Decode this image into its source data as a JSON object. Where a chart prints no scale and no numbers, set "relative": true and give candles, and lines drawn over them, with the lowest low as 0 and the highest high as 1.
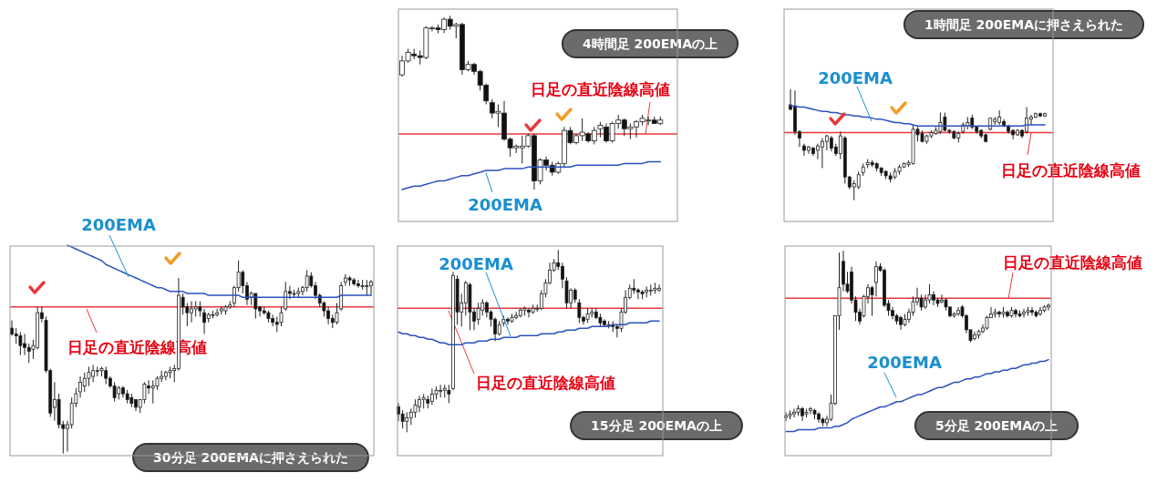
{
  "chart_data": [
    {
      "type": "candlestick",
      "title": "4時間足 200EMAの上",
      "relative": true,
      "categories": [
        null,
        null,
        null,
        null,
        null,
        null,
        null,
        null,
        null,
        null,
        null,
        null,
        null,
        null,
        null,
        null,
        null,
        null,
        null,
        null,
        null,
        null,
        null,
        null,
        null,
        null,
        null,
        null,
        null,
        null,
        null,
        null,
        null,
        null,
        null,
        null,
        null,
        null,
        null,
        null,
        null,
        null,
        null,
        null
      ],
      "ohlc": [
        [
          0.66,
          0.77,
          0.65,
          0.74
        ],
        [
          0.74,
          0.81,
          0.73,
          0.79
        ],
        [
          0.78,
          0.81,
          0.75,
          0.77
        ],
        [
          0.77,
          0.8,
          0.72,
          0.76
        ],
        [
          0.76,
          0.94,
          0.75,
          0.93
        ],
        [
          0.93,
          0.94,
          0.91,
          0.93
        ],
        [
          0.93,
          0.95,
          0.9,
          0.92
        ],
        [
          0.92,
          0.99,
          0.9,
          0.98
        ],
        [
          0.98,
          1.0,
          0.92,
          0.94
        ],
        [
          0.94,
          0.96,
          0.87,
          0.95
        ],
        [
          0.95,
          0.96,
          0.66,
          0.69
        ],
        [
          0.69,
          0.74,
          0.68,
          0.72
        ],
        [
          0.72,
          0.73,
          0.66,
          0.68
        ],
        [
          0.68,
          0.69,
          0.57,
          0.6
        ],
        [
          0.6,
          0.61,
          0.49,
          0.51
        ],
        [
          0.5,
          0.52,
          0.41,
          0.44
        ],
        [
          0.44,
          0.49,
          0.36,
          0.45
        ],
        [
          0.44,
          0.51,
          0.28,
          0.29
        ],
        [
          0.29,
          0.3,
          0.19,
          0.24
        ],
        [
          0.24,
          0.26,
          0.21,
          0.25
        ],
        [
          0.24,
          0.31,
          0.15,
          0.25
        ],
        [
          0.25,
          0.32,
          0.24,
          0.31
        ],
        [
          0.31,
          0.32,
          0.0,
          0.05
        ],
        [
          0.05,
          0.18,
          0.03,
          0.17
        ],
        [
          0.17,
          0.19,
          0.11,
          0.14
        ],
        [
          0.14,
          0.16,
          0.08,
          0.1
        ],
        [
          0.1,
          0.16,
          0.09,
          0.15
        ],
        [
          0.15,
          0.36,
          0.13,
          0.34
        ],
        [
          0.34,
          0.36,
          0.26,
          0.27
        ],
        [
          0.27,
          0.32,
          0.26,
          0.31
        ],
        [
          0.31,
          0.41,
          0.28,
          0.33
        ],
        [
          0.32,
          0.33,
          0.27,
          0.28
        ],
        [
          0.28,
          0.36,
          0.26,
          0.34
        ],
        [
          0.35,
          0.39,
          0.3,
          0.37
        ],
        [
          0.36,
          0.38,
          0.27,
          0.28
        ],
        [
          0.28,
          0.39,
          0.27,
          0.38
        ],
        [
          0.38,
          0.43,
          0.35,
          0.4
        ],
        [
          0.4,
          0.41,
          0.31,
          0.35
        ],
        [
          0.35,
          0.38,
          0.29,
          0.36
        ],
        [
          0.36,
          0.4,
          0.3,
          0.39
        ],
        [
          0.39,
          0.43,
          0.37,
          0.41
        ],
        [
          0.4,
          0.42,
          0.37,
          0.4
        ],
        [
          0.4,
          0.42,
          0.38,
          0.38
        ],
        [
          0.38,
          0.42,
          0.37,
          0.4
        ]
      ],
      "series": [
        {
          "name": "200EMA",
          "type": "line",
          "color": "#2a52be",
          "values": [
            0.0,
            0.01,
            0.02,
            0.02,
            0.03,
            0.04,
            0.05,
            0.05,
            0.06,
            0.07,
            0.08,
            0.08,
            0.09,
            0.1,
            0.11,
            0.11,
            0.11,
            0.12,
            0.12,
            0.12,
            0.12,
            0.13,
            0.13,
            0.13,
            0.13,
            0.13,
            0.13,
            0.13,
            0.13,
            0.14,
            0.14,
            0.14,
            0.14,
            0.14,
            0.14,
            0.14,
            0.14,
            0.15,
            0.15,
            0.15,
            0.15,
            0.16,
            0.16,
            0.16
          ]
        }
      ],
      "ref_lines": [
        {
          "axis": "y",
          "value": 0.32,
          "label": "日足の直近陰線高値",
          "color": "#e8383d"
        }
      ]
    },
    {
      "type": "candlestick",
      "title": "1時間足 200EMAに押さえられた",
      "relative": true,
      "categories": [
        null,
        null,
        null,
        null,
        null,
        null,
        null,
        null,
        null,
        null,
        null,
        null,
        null,
        null,
        null,
        null,
        null,
        null,
        null,
        null,
        null,
        null,
        null,
        null,
        null,
        null,
        null,
        null,
        null,
        null,
        null,
        null,
        null,
        null,
        null,
        null,
        null,
        null,
        null,
        null,
        null,
        null,
        null,
        null,
        null,
        null,
        null,
        null,
        null,
        null,
        null,
        null,
        null,
        null,
        null,
        null,
        null
      ],
      "ohlc": [
        [
          0.86,
          1.0,
          0.81,
          0.82
        ],
        [
          0.84,
          0.99,
          0.59,
          0.62
        ],
        [
          0.62,
          0.63,
          0.48,
          0.56
        ],
        [
          0.49,
          0.51,
          0.4,
          0.45
        ],
        [
          0.45,
          0.49,
          0.42,
          0.48
        ],
        [
          0.47,
          0.48,
          0.4,
          0.42
        ],
        [
          0.45,
          0.51,
          0.37,
          0.49
        ],
        [
          0.48,
          0.56,
          0.29,
          0.53
        ],
        [
          0.53,
          0.59,
          0.45,
          0.58
        ],
        [
          0.56,
          0.58,
          0.44,
          0.47
        ],
        [
          0.48,
          0.51,
          0.4,
          0.42
        ],
        [
          0.42,
          0.62,
          0.37,
          0.58
        ],
        [
          0.56,
          0.58,
          0.15,
          0.21
        ],
        [
          0.21,
          0.22,
          0.1,
          0.12
        ],
        [
          0.12,
          0.18,
          0.0,
          0.15
        ],
        [
          0.12,
          0.26,
          0.1,
          0.23
        ],
        [
          0.25,
          0.33,
          0.22,
          0.3
        ],
        [
          0.32,
          0.37,
          0.29,
          0.34
        ],
        [
          0.34,
          0.36,
          0.3,
          0.32
        ],
        [
          0.33,
          0.34,
          0.26,
          0.29
        ],
        [
          0.29,
          0.3,
          0.22,
          0.25
        ],
        [
          0.26,
          0.27,
          0.19,
          0.22
        ],
        [
          0.22,
          0.25,
          0.16,
          0.19
        ],
        [
          0.21,
          0.29,
          0.19,
          0.26
        ],
        [
          0.26,
          0.32,
          0.23,
          0.3
        ],
        [
          0.3,
          0.34,
          0.29,
          0.33
        ],
        [
          0.32,
          0.36,
          0.3,
          0.34
        ],
        [
          0.33,
          0.68,
          0.32,
          0.64
        ],
        [
          0.64,
          0.66,
          0.53,
          0.59
        ],
        [
          0.6,
          0.63,
          0.52,
          0.53
        ],
        [
          0.53,
          0.59,
          0.51,
          0.58
        ],
        [
          0.58,
          0.63,
          0.56,
          0.61
        ],
        [
          0.6,
          0.66,
          0.59,
          0.63
        ],
        [
          0.62,
          0.79,
          0.6,
          0.7
        ],
        [
          0.75,
          0.79,
          0.62,
          0.63
        ],
        [
          0.63,
          0.64,
          0.6,
          0.62
        ],
        [
          0.62,
          0.63,
          0.55,
          0.56
        ],
        [
          0.56,
          0.62,
          0.52,
          0.6
        ],
        [
          0.62,
          0.7,
          0.6,
          0.68
        ],
        [
          0.67,
          0.75,
          0.64,
          0.7
        ],
        [
          0.74,
          0.77,
          0.64,
          0.66
        ],
        [
          0.66,
          0.67,
          0.6,
          0.62
        ],
        [
          0.63,
          0.64,
          0.56,
          0.58
        ],
        [
          0.59,
          0.6,
          0.52,
          0.53
        ],
        [
          0.64,
          0.74,
          0.63,
          0.74
        ],
        [
          0.71,
          0.75,
          0.68,
          0.73
        ],
        [
          0.7,
          0.81,
          0.68,
          0.75
        ],
        [
          0.71,
          0.73,
          0.66,
          0.67
        ],
        [
          0.67,
          0.68,
          0.6,
          0.62
        ],
        [
          0.63,
          0.64,
          0.55,
          0.59
        ],
        [
          0.59,
          0.64,
          0.58,
          0.63
        ],
        [
          0.63,
          0.64,
          0.56,
          0.58
        ],
        [
          0.62,
          0.84,
          0.6,
          0.74
        ],
        [
          0.73,
          0.77,
          0.68,
          0.75
        ],
        [
          0.75,
          0.79,
          0.74,
          0.78
        ],
        [
          0.78,
          0.79,
          0.75,
          0.76
        ],
        [
          0.76,
          0.79,
          0.75,
          0.78
        ]
      ],
      "series": [
        {
          "name": "200EMA",
          "type": "line",
          "color": "#2a52be",
          "values": [
            0.85,
            0.85,
            0.84,
            0.84,
            0.83,
            0.82,
            0.81,
            0.8,
            0.8,
            0.79,
            0.79,
            0.78,
            0.77,
            0.77,
            0.76,
            0.76,
            0.75,
            0.75,
            0.74,
            0.73,
            0.73,
            0.72,
            0.71,
            0.7,
            0.7,
            0.69,
            0.69,
            0.68,
            0.67,
            0.67,
            0.67,
            0.67,
            0.67,
            0.67,
            0.67,
            0.67,
            0.67,
            0.67,
            0.67,
            0.67,
            0.67,
            0.67,
            0.67,
            0.67,
            0.67,
            0.67,
            0.67,
            0.67,
            0.67,
            0.67,
            0.67,
            0.67,
            0.68,
            0.68,
            0.68,
            0.68,
            0.68
          ]
        }
      ],
      "ref_lines": [
        {
          "axis": "y",
          "value": 0.61,
          "label": "日足の直近陰線高値",
          "color": "#e8383d"
        }
      ]
    },
    {
      "type": "candlestick",
      "title": "30分足 200EMAに押さえられた",
      "relative": true,
      "categories": [
        null,
        null,
        null,
        null,
        null,
        null,
        null,
        null,
        null,
        null,
        null,
        null,
        null,
        null,
        null,
        null,
        null,
        null,
        null,
        null,
        null,
        null,
        null,
        null,
        null,
        null,
        null,
        null,
        null,
        null,
        null,
        null,
        null,
        null,
        null,
        null,
        null,
        null,
        null,
        null,
        null,
        null,
        null,
        null,
        null,
        null,
        null,
        null,
        null,
        null,
        null,
        null,
        null,
        null,
        null,
        null,
        null,
        null,
        null,
        null,
        null,
        null,
        null,
        null,
        null,
        null,
        null,
        null,
        null,
        null,
        null,
        null,
        null,
        null,
        null,
        null,
        null,
        null,
        null,
        null,
        null,
        null,
        null,
        null,
        null
      ],
      "ohlc": [
        [
          0.65,
          0.69,
          0.61,
          0.62
        ],
        [
          0.62,
          0.65,
          0.57,
          0.61
        ],
        [
          0.61,
          0.63,
          0.51,
          0.56
        ],
        [
          0.57,
          0.62,
          0.51,
          0.55
        ],
        [
          0.55,
          0.57,
          0.47,
          0.53
        ],
        [
          0.54,
          0.59,
          0.49,
          0.56
        ],
        [
          0.55,
          0.76,
          0.54,
          0.73
        ],
        [
          0.73,
          0.76,
          0.68,
          0.7
        ],
        [
          0.69,
          0.71,
          0.42,
          0.43
        ],
        [
          0.43,
          0.44,
          0.19,
          0.21
        ],
        [
          0.24,
          0.37,
          0.17,
          0.28
        ],
        [
          0.28,
          0.31,
          0.13,
          0.15
        ],
        [
          0.15,
          0.17,
          0.0,
          0.13
        ],
        [
          0.13,
          0.17,
          0.01,
          0.15
        ],
        [
          0.15,
          0.29,
          0.13,
          0.26
        ],
        [
          0.26,
          0.34,
          0.24,
          0.31
        ],
        [
          0.32,
          0.4,
          0.29,
          0.37
        ],
        [
          0.35,
          0.42,
          0.32,
          0.39
        ],
        [
          0.39,
          0.45,
          0.35,
          0.42
        ],
        [
          0.4,
          0.46,
          0.37,
          0.43
        ],
        [
          0.43,
          0.45,
          0.4,
          0.43
        ],
        [
          0.43,
          0.45,
          0.4,
          0.44
        ],
        [
          0.43,
          0.45,
          0.36,
          0.39
        ],
        [
          0.39,
          0.4,
          0.34,
          0.35
        ],
        [
          0.35,
          0.37,
          0.27,
          0.29
        ],
        [
          0.31,
          0.35,
          0.28,
          0.34
        ],
        [
          0.34,
          0.35,
          0.29,
          0.31
        ],
        [
          0.31,
          0.33,
          0.26,
          0.28
        ],
        [
          0.29,
          0.31,
          0.24,
          0.26
        ],
        [
          0.28,
          0.28,
          0.22,
          0.24
        ],
        [
          0.24,
          0.28,
          0.21,
          0.28
        ],
        [
          0.28,
          0.37,
          0.26,
          0.36
        ],
        [
          0.35,
          0.38,
          0.31,
          0.34
        ],
        [
          0.34,
          0.38,
          0.26,
          0.35
        ],
        [
          0.35,
          0.4,
          0.33,
          0.39
        ],
        [
          0.39,
          0.43,
          0.37,
          0.4
        ],
        [
          0.4,
          0.43,
          0.38,
          0.42
        ],
        [
          0.42,
          0.45,
          0.39,
          0.43
        ],
        [
          0.43,
          0.46,
          0.37,
          0.44
        ],
        [
          0.44,
          0.91,
          0.43,
          0.82
        ],
        [
          0.81,
          0.83,
          0.72,
          0.76
        ],
        [
          0.76,
          0.78,
          0.66,
          0.73
        ],
        [
          0.73,
          0.79,
          0.68,
          0.75
        ],
        [
          0.75,
          0.79,
          0.71,
          0.76
        ],
        [
          0.76,
          0.79,
          0.71,
          0.74
        ],
        [
          0.73,
          0.75,
          0.62,
          0.68
        ],
        [
          0.7,
          0.73,
          0.68,
          0.72
        ],
        [
          0.72,
          0.74,
          0.7,
          0.72
        ],
        [
          0.72,
          0.75,
          0.71,
          0.73
        ],
        [
          0.74,
          0.76,
          0.72,
          0.75
        ],
        [
          0.74,
          0.77,
          0.72,
          0.76
        ],
        [
          0.76,
          0.79,
          0.75,
          0.77
        ],
        [
          0.78,
          0.87,
          0.76,
          0.86
        ],
        [
          0.86,
          1.0,
          0.84,
          0.94
        ],
        [
          0.94,
          0.95,
          0.83,
          0.87
        ],
        [
          0.87,
          0.89,
          0.77,
          0.8
        ],
        [
          0.81,
          0.84,
          0.77,
          0.83
        ],
        [
          0.83,
          0.83,
          0.7,
          0.75
        ],
        [
          0.76,
          0.76,
          0.71,
          0.74
        ],
        [
          0.74,
          0.76,
          0.72,
          0.73
        ],
        [
          0.73,
          0.74,
          0.68,
          0.7
        ],
        [
          0.7,
          0.72,
          0.66,
          0.68
        ],
        [
          0.68,
          0.71,
          0.63,
          0.67
        ],
        [
          0.68,
          0.76,
          0.66,
          0.73
        ],
        [
          0.75,
          0.89,
          0.74,
          0.84
        ],
        [
          0.84,
          0.87,
          0.8,
          0.83
        ],
        [
          0.83,
          0.85,
          0.81,
          0.83
        ],
        [
          0.83,
          0.86,
          0.81,
          0.84
        ],
        [
          0.84,
          0.87,
          0.82,
          0.86
        ],
        [
          0.86,
          0.95,
          0.84,
          0.92
        ],
        [
          0.92,
          0.94,
          0.86,
          0.87
        ],
        [
          0.87,
          0.89,
          0.8,
          0.82
        ],
        [
          0.82,
          0.83,
          0.76,
          0.78
        ],
        [
          0.78,
          0.79,
          0.71,
          0.74
        ],
        [
          0.74,
          0.76,
          0.67,
          0.7
        ],
        [
          0.7,
          0.72,
          0.65,
          0.68
        ],
        [
          0.68,
          0.78,
          0.67,
          0.73
        ],
        [
          0.75,
          0.89,
          0.74,
          0.87
        ],
        [
          0.89,
          0.93,
          0.87,
          0.91
        ],
        [
          0.91,
          0.92,
          0.87,
          0.9
        ],
        [
          0.9,
          0.91,
          0.87,
          0.88
        ],
        [
          0.88,
          0.9,
          0.86,
          0.87
        ],
        [
          0.87,
          0.9,
          0.85,
          0.87
        ],
        [
          0.87,
          0.9,
          0.82,
          0.87
        ],
        [
          0.87,
          0.9,
          0.82,
          0.89
        ]
      ],
      "series": [
        {
          "name": "200EMA",
          "type": "line",
          "color": "#2a52be",
          "values": [
            null,
            null,
            null,
            null,
            null,
            null,
            null,
            null,
            null,
            null,
            null,
            null,
            null,
            1.08,
            1.07,
            1.06,
            1.05,
            1.04,
            1.03,
            1.02,
            1.01,
            1.0,
            0.98,
            0.97,
            0.96,
            0.95,
            0.94,
            0.93,
            0.92,
            0.91,
            0.9,
            0.89,
            0.88,
            0.87,
            0.86,
            0.86,
            0.85,
            0.84,
            0.84,
            0.84,
            0.84,
            0.83,
            0.83,
            0.83,
            0.83,
            0.83,
            0.82,
            0.82,
            0.82,
            0.82,
            0.82,
            0.82,
            0.82,
            0.82,
            0.81,
            0.81,
            0.81,
            0.81,
            0.81,
            0.81,
            0.81,
            0.81,
            0.81,
            0.81,
            0.81,
            0.81,
            0.81,
            0.81,
            0.81,
            0.81,
            0.81,
            0.81,
            0.81,
            0.81,
            0.81,
            0.81,
            0.81,
            0.82,
            0.82,
            0.82,
            0.82,
            0.82,
            0.82,
            0.82,
            0.82
          ]
        }
      ],
      "ref_lines": [
        {
          "axis": "y",
          "value": 0.76,
          "label": "日足の直近陰線高値",
          "color": "#e8383d"
        }
      ]
    },
    {
      "type": "candlestick",
      "title": "15分足 200EMAの上",
      "relative": true,
      "categories": [
        null,
        null,
        null,
        null,
        null,
        null,
        null,
        null,
        null,
        null,
        null,
        null,
        null,
        null,
        null,
        null,
        null,
        null,
        null,
        null,
        null,
        null,
        null,
        null,
        null,
        null,
        null,
        null,
        null,
        null,
        null,
        null,
        null,
        null,
        null,
        null,
        null,
        null,
        null,
        null,
        null,
        null,
        null,
        null,
        null,
        null,
        null,
        null,
        null,
        null,
        null,
        null,
        null,
        null,
        null,
        null,
        null,
        null,
        null,
        null,
        null,
        null,
        null
      ],
      "ohlc": [
        [
          0.14,
          0.16,
          0.06,
          0.1
        ],
        [
          0.1,
          0.12,
          0.02,
          0.06
        ],
        [
          0.06,
          0.11,
          0.0,
          0.08
        ],
        [
          0.08,
          0.13,
          0.04,
          0.11
        ],
        [
          0.11,
          0.18,
          0.08,
          0.15
        ],
        [
          0.14,
          0.2,
          0.11,
          0.18
        ],
        [
          0.18,
          0.21,
          0.13,
          0.19
        ],
        [
          0.18,
          0.2,
          0.13,
          0.16
        ],
        [
          0.17,
          0.24,
          0.15,
          0.21
        ],
        [
          0.21,
          0.25,
          0.18,
          0.23
        ],
        [
          0.23,
          0.26,
          0.19,
          0.23
        ],
        [
          0.23,
          0.26,
          0.19,
          0.24
        ],
        [
          0.23,
          0.26,
          0.16,
          0.21
        ],
        [
          0.24,
          0.88,
          0.23,
          0.86
        ],
        [
          0.84,
          0.86,
          0.59,
          0.66
        ],
        [
          0.66,
          0.76,
          0.58,
          0.71
        ],
        [
          0.71,
          0.83,
          0.64,
          0.82
        ],
        [
          0.81,
          0.82,
          0.56,
          0.66
        ],
        [
          0.66,
          0.68,
          0.56,
          0.61
        ],
        [
          0.62,
          0.71,
          0.59,
          0.68
        ],
        [
          0.67,
          0.73,
          0.64,
          0.71
        ],
        [
          0.71,
          0.72,
          0.63,
          0.66
        ],
        [
          0.66,
          0.67,
          0.58,
          0.62
        ],
        [
          0.62,
          0.63,
          0.5,
          0.54
        ],
        [
          0.54,
          0.61,
          0.53,
          0.59
        ],
        [
          0.6,
          0.64,
          0.58,
          0.62
        ],
        [
          0.62,
          0.63,
          0.59,
          0.61
        ],
        [
          0.61,
          0.65,
          0.6,
          0.63
        ],
        [
          0.63,
          0.66,
          0.62,
          0.64
        ],
        [
          0.64,
          0.68,
          0.63,
          0.67
        ],
        [
          0.67,
          0.69,
          0.64,
          0.68
        ],
        [
          0.67,
          0.68,
          0.63,
          0.66
        ],
        [
          0.66,
          0.7,
          0.65,
          0.68
        ],
        [
          0.68,
          0.7,
          0.66,
          0.68
        ],
        [
          0.68,
          0.78,
          0.67,
          0.76
        ],
        [
          0.76,
          0.84,
          0.74,
          0.82
        ],
        [
          0.82,
          0.93,
          0.81,
          0.89
        ],
        [
          0.89,
          0.95,
          0.88,
          0.93
        ],
        [
          0.93,
          1.0,
          0.89,
          0.91
        ],
        [
          0.91,
          0.93,
          0.79,
          0.84
        ],
        [
          0.83,
          0.85,
          0.68,
          0.71
        ],
        [
          0.71,
          0.79,
          0.68,
          0.78
        ],
        [
          0.78,
          0.79,
          0.71,
          0.73
        ],
        [
          0.71,
          0.73,
          0.6,
          0.63
        ],
        [
          0.63,
          0.64,
          0.59,
          0.61
        ],
        [
          0.62,
          0.68,
          0.6,
          0.65
        ],
        [
          0.65,
          0.68,
          0.63,
          0.66
        ],
        [
          0.66,
          0.68,
          0.62,
          0.63
        ],
        [
          0.63,
          0.65,
          0.58,
          0.6
        ],
        [
          0.61,
          0.62,
          0.58,
          0.59
        ],
        [
          0.59,
          0.61,
          0.57,
          0.59
        ],
        [
          0.59,
          0.61,
          0.55,
          0.58
        ],
        [
          0.58,
          0.59,
          0.52,
          0.57
        ],
        [
          0.57,
          0.68,
          0.55,
          0.66
        ],
        [
          0.66,
          0.78,
          0.65,
          0.74
        ],
        [
          0.74,
          0.81,
          0.73,
          0.79
        ],
        [
          0.79,
          0.84,
          0.76,
          0.78
        ],
        [
          0.78,
          0.79,
          0.73,
          0.77
        ],
        [
          0.77,
          0.78,
          0.73,
          0.76
        ],
        [
          0.77,
          0.8,
          0.74,
          0.78
        ],
        [
          0.78,
          0.81,
          0.75,
          0.78
        ],
        [
          0.78,
          0.82,
          0.76,
          0.79
        ],
        [
          0.78,
          0.81,
          0.77,
          0.79
        ]
      ],
      "series": [
        {
          "name": "200EMA",
          "type": "line",
          "color": "#2a52be",
          "values": [
            0.55,
            0.54,
            0.54,
            0.53,
            0.53,
            0.52,
            0.52,
            0.51,
            0.51,
            0.5,
            0.49,
            0.49,
            0.48,
            0.48,
            0.48,
            0.48,
            0.49,
            0.49,
            0.49,
            0.5,
            0.5,
            0.5,
            0.51,
            0.51,
            0.51,
            0.52,
            0.52,
            0.52,
            0.52,
            0.53,
            0.53,
            0.53,
            0.53,
            0.53,
            0.54,
            0.54,
            0.54,
            0.54,
            0.55,
            0.55,
            0.56,
            0.56,
            0.56,
            0.57,
            0.57,
            0.57,
            0.58,
            0.58,
            0.58,
            0.58,
            0.58,
            0.59,
            0.59,
            0.59,
            0.59,
            0.6,
            0.6,
            0.6,
            0.6,
            0.6,
            0.61,
            0.61,
            0.61
          ]
        }
      ],
      "ref_lines": [
        {
          "axis": "y",
          "value": 0.68,
          "label": "日足の直近陰線高値",
          "color": "#e8383d"
        }
      ]
    },
    {
      "type": "candlestick",
      "title": "5分足 200EMAの上",
      "relative": true,
      "categories": [
        null,
        null,
        null,
        null,
        null,
        null,
        null,
        null,
        null,
        null,
        null,
        null,
        null,
        null,
        null,
        null,
        null,
        null,
        null,
        null,
        null,
        null,
        null,
        null,
        null,
        null,
        null,
        null,
        null,
        null,
        null,
        null,
        null,
        null,
        null,
        null,
        null,
        null,
        null,
        null,
        null,
        null,
        null,
        null,
        null,
        null,
        null,
        null,
        null,
        null,
        null,
        null,
        null,
        null,
        null,
        null,
        null,
        null,
        null,
        null,
        null,
        null,
        null,
        null,
        null
      ],
      "ohlc": [
        [
          0.05,
          0.08,
          0.03,
          0.06
        ],
        [
          0.06,
          0.09,
          0.04,
          0.07
        ],
        [
          0.07,
          0.1,
          0.05,
          0.08
        ],
        [
          0.08,
          0.12,
          0.06,
          0.1
        ],
        [
          0.1,
          0.11,
          0.03,
          0.06
        ],
        [
          0.07,
          0.1,
          0.05,
          0.08
        ],
        [
          0.09,
          0.11,
          0.07,
          0.1
        ],
        [
          0.09,
          0.1,
          0.04,
          0.07
        ],
        [
          0.07,
          0.08,
          0.02,
          0.04
        ],
        [
          0.04,
          0.05,
          0.0,
          0.02
        ],
        [
          0.02,
          0.06,
          0.0,
          0.04
        ],
        [
          0.04,
          0.18,
          0.03,
          0.13
        ],
        [
          0.13,
          0.63,
          0.12,
          0.63
        ],
        [
          0.63,
          0.99,
          0.55,
          0.79
        ],
        [
          0.94,
          1.0,
          0.77,
          0.81
        ],
        [
          0.81,
          0.88,
          0.76,
          0.77
        ],
        [
          0.88,
          0.91,
          0.7,
          0.72
        ],
        [
          0.72,
          0.74,
          0.6,
          0.65
        ],
        [
          0.65,
          0.67,
          0.58,
          0.6
        ],
        [
          0.63,
          0.75,
          0.62,
          0.74
        ],
        [
          0.74,
          0.81,
          0.7,
          0.79
        ],
        [
          0.79,
          0.8,
          0.63,
          0.75
        ],
        [
          0.82,
          0.94,
          0.74,
          0.91
        ],
        [
          0.91,
          0.93,
          0.88,
          0.89
        ],
        [
          0.89,
          0.9,
          0.68,
          0.69
        ],
        [
          0.7,
          0.72,
          0.63,
          0.66
        ],
        [
          0.66,
          0.68,
          0.61,
          0.63
        ],
        [
          0.63,
          0.64,
          0.58,
          0.6
        ],
        [
          0.62,
          0.63,
          0.55,
          0.58
        ],
        [
          0.58,
          0.64,
          0.57,
          0.61
        ],
        [
          0.61,
          0.67,
          0.59,
          0.65
        ],
        [
          0.65,
          0.74,
          0.63,
          0.71
        ],
        [
          0.71,
          0.79,
          0.69,
          0.73
        ],
        [
          0.73,
          0.75,
          0.66,
          0.68
        ],
        [
          0.68,
          0.75,
          0.67,
          0.72
        ],
        [
          0.72,
          0.81,
          0.7,
          0.75
        ],
        [
          0.75,
          0.77,
          0.69,
          0.72
        ],
        [
          0.72,
          0.73,
          0.68,
          0.7
        ],
        [
          0.71,
          0.75,
          0.7,
          0.72
        ],
        [
          0.72,
          0.73,
          0.66,
          0.68
        ],
        [
          0.68,
          0.68,
          0.62,
          0.63
        ],
        [
          0.63,
          0.65,
          0.62,
          0.64
        ],
        [
          0.64,
          0.68,
          0.63,
          0.66
        ],
        [
          0.68,
          0.69,
          0.62,
          0.63
        ],
        [
          0.63,
          0.64,
          0.53,
          0.55
        ],
        [
          0.55,
          0.55,
          0.48,
          0.49
        ],
        [
          0.5,
          0.54,
          0.49,
          0.52
        ],
        [
          0.52,
          0.55,
          0.5,
          0.54
        ],
        [
          0.54,
          0.58,
          0.53,
          0.56
        ],
        [
          0.56,
          0.63,
          0.55,
          0.62
        ],
        [
          0.62,
          0.68,
          0.62,
          0.64
        ],
        [
          0.64,
          0.67,
          0.62,
          0.65
        ],
        [
          0.65,
          0.66,
          0.62,
          0.64
        ],
        [
          0.64,
          0.68,
          0.62,
          0.65
        ],
        [
          0.65,
          0.66,
          0.62,
          0.63
        ],
        [
          0.63,
          0.68,
          0.62,
          0.66
        ],
        [
          0.66,
          0.67,
          0.62,
          0.64
        ],
        [
          0.64,
          0.66,
          0.62,
          0.63
        ],
        [
          0.64,
          0.67,
          0.62,
          0.65
        ],
        [
          0.65,
          0.68,
          0.63,
          0.66
        ],
        [
          0.66,
          0.68,
          0.63,
          0.65
        ],
        [
          0.65,
          0.66,
          0.62,
          0.63
        ],
        [
          0.64,
          0.68,
          0.63,
          0.66
        ],
        [
          0.66,
          0.69,
          0.65,
          0.68
        ],
        [
          0.68,
          0.7,
          0.66,
          0.69
        ]
      ],
      "series": [
        {
          "name": "200EMA",
          "type": "line",
          "color": "#2a52be",
          "values": [
            -0.03,
            -0.03,
            -0.03,
            -0.02,
            -0.02,
            -0.02,
            -0.02,
            -0.02,
            -0.01,
            -0.01,
            -0.01,
            -0.01,
            0.0,
            0.0,
            0.01,
            0.02,
            0.04,
            0.05,
            0.06,
            0.07,
            0.08,
            0.09,
            0.1,
            0.11,
            0.11,
            0.12,
            0.13,
            0.14,
            0.14,
            0.15,
            0.16,
            0.17,
            0.18,
            0.18,
            0.19,
            0.2,
            0.21,
            0.22,
            0.22,
            0.23,
            0.24,
            0.25,
            0.25,
            0.26,
            0.27,
            0.27,
            0.28,
            0.28,
            0.29,
            0.3,
            0.3,
            0.31,
            0.31,
            0.32,
            0.32,
            0.33,
            0.33,
            0.34,
            0.35,
            0.35,
            0.36,
            0.36,
            0.37,
            0.37,
            0.38
          ]
        }
      ],
      "ref_lines": [
        {
          "axis": "y",
          "value": 0.73,
          "label": "日足の直近陰線高値",
          "color": "#e8383d"
        }
      ]
    }
  ]
}
